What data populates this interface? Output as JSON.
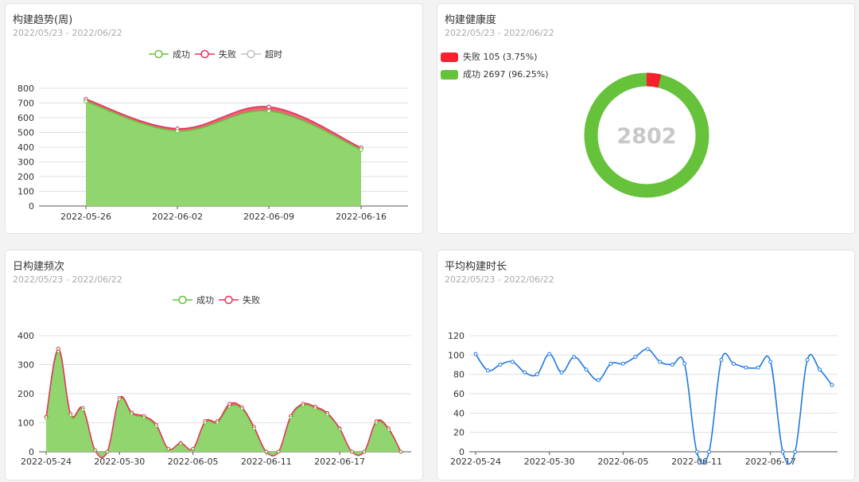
{
  "colors": {
    "success": "#66c23a",
    "success_fill": "#91d56e",
    "fail": "#f5222d",
    "timeout": "#c8c8c8",
    "blue": "#1f78e0"
  },
  "panels": {
    "trend": {
      "title": "构建趋势(周)",
      "subtitle": "2022/05/23 - 2022/06/22",
      "legend": [
        "成功",
        "失败",
        "超时"
      ]
    },
    "health": {
      "title": "构建健康度",
      "subtitle": "2022/05/23 - 2022/06/22",
      "legend": [
        "失败 105 (3.75%)",
        "成功 2697 (96.25%)"
      ],
      "total": "2802"
    },
    "daily": {
      "title": "日构建频次",
      "subtitle": "2022/05/23 - 2022/06/22",
      "legend": [
        "成功",
        "失败"
      ]
    },
    "duration": {
      "title": "平均构建时长",
      "subtitle": "2022/05/23 - 2022/06/22"
    }
  },
  "chart_data": [
    {
      "type": "area",
      "categories": [
        "2022-05-26",
        "2022-06-02",
        "2022-06-09",
        "2022-06-16"
      ],
      "series": [
        {
          "name": "成功",
          "values": [
            710,
            510,
            645,
            383
          ]
        },
        {
          "name": "失败",
          "values": [
            15,
            15,
            28,
            12
          ]
        },
        {
          "name": "超时",
          "values": [
            3,
            2,
            3,
            2
          ]
        }
      ],
      "ylim": [
        0,
        800
      ],
      "yticks": [
        0,
        100,
        200,
        300,
        400,
        500,
        600,
        700,
        800
      ],
      "legend": "top-center"
    },
    {
      "type": "pie",
      "labels": [
        "失败",
        "成功"
      ],
      "values": [
        105,
        2697
      ],
      "percent": [
        "3.75%",
        "96.25%"
      ],
      "total": 2802,
      "legend": "top-left"
    },
    {
      "type": "area",
      "x_ticks": [
        "2022-05-24",
        "2022-05-30",
        "2022-06-05",
        "2022-06-11",
        "2022-06-17"
      ],
      "series": [
        {
          "name": "成功",
          "values": [
            115,
            345,
            125,
            145,
            5,
            0,
            180,
            130,
            118,
            88,
            10,
            28,
            10,
            100,
            100,
            155,
            148,
            80,
            0,
            0,
            118,
            160,
            150,
            128,
            78,
            0,
            0,
            100,
            75,
            0
          ]
        },
        {
          "name": "失败",
          "values": [
            5,
            10,
            5,
            5,
            0,
            0,
            5,
            5,
            5,
            5,
            0,
            2,
            0,
            5,
            5,
            10,
            5,
            5,
            0,
            0,
            5,
            5,
            5,
            5,
            2,
            0,
            0,
            5,
            5,
            0
          ]
        }
      ],
      "ylim": [
        0,
        400
      ],
      "yticks": [
        0,
        100,
        200,
        300,
        400
      ],
      "legend": "top-center"
    },
    {
      "type": "line",
      "x_ticks": [
        "2022-05-24",
        "2022-05-30",
        "2022-06-05",
        "2022-06-11",
        "2022-06-17"
      ],
      "series": [
        {
          "values": [
            101,
            84,
            90,
            93,
            82,
            80,
            101,
            82,
            98,
            85,
            74,
            91,
            91,
            98,
            106,
            93,
            90,
            91,
            0,
            0,
            95,
            91,
            87,
            87,
            93,
            0,
            0,
            95,
            85,
            69
          ]
        }
      ],
      "ylim": [
        0,
        120
      ],
      "yticks": [
        0,
        20,
        40,
        60,
        80,
        100,
        120
      ]
    }
  ]
}
